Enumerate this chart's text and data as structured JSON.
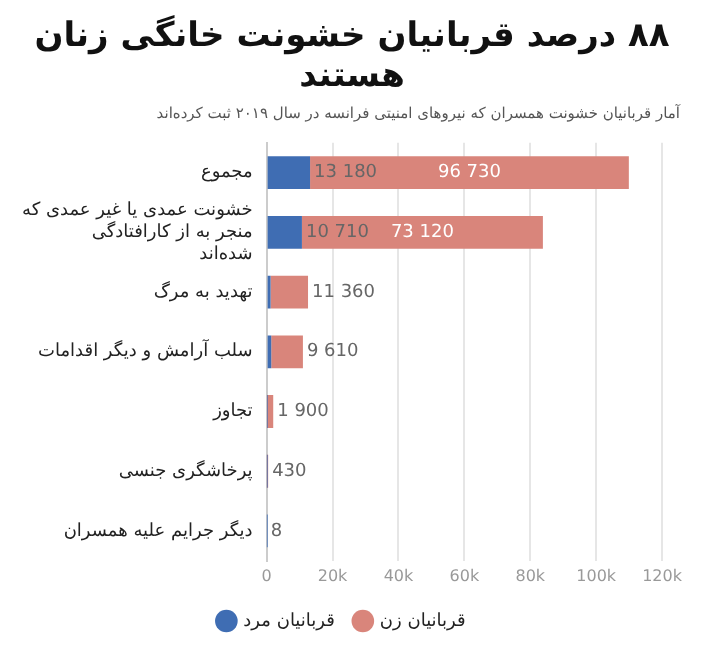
{
  "chart_data": {
    "type": "bar",
    "orientation": "horizontal",
    "stacked": true,
    "title": "۸۸ درصد قربانیان خشونت خانگی زنان هستند",
    "subtitle": "آمار قربانیان خشونت همسران که نیروهای امنیتی فرانسه در سال ۲۰۱۹ ثبت کرده‌اند",
    "categories": [
      "مجموع",
      "خشونت عمدی یا غیر عمدی که منجر به از کارافتادگی شده‌اند",
      "تهدید به مرگ",
      "سلب آرامش و دیگر اقدامات",
      "تجاوز",
      "پرخاشگری جنسی",
      "دیگر جرایم علیه همسران"
    ],
    "series": [
      {
        "name": "قربانیان مرد",
        "color": "#3f6db3",
        "values": [
          13180,
          10710,
          1200,
          1400,
          100,
          30,
          1
        ],
        "value_labels": [
          "13 180",
          "10 710",
          null,
          null,
          null,
          null,
          null
        ]
      },
      {
        "name": "قربانیان زن",
        "color": "#d9857b",
        "values": [
          96730,
          73120,
          11360,
          9610,
          1900,
          430,
          8
        ],
        "value_labels": [
          "96 730",
          "73 120",
          "11 360",
          "9 610",
          "1 900",
          "430",
          "8"
        ]
      }
    ],
    "xlim": [
      0,
      120000
    ],
    "xticks": [
      {
        "value": 0,
        "label": "0"
      },
      {
        "value": 20000,
        "label": "20k"
      },
      {
        "value": 40000,
        "label": "40k"
      },
      {
        "value": 60000,
        "label": "60k"
      },
      {
        "value": 80000,
        "label": "80k"
      },
      {
        "value": 100000,
        "label": "100k"
      },
      {
        "value": 120000,
        "label": "120k"
      }
    ],
    "grid": "x",
    "legend": "bottom"
  }
}
